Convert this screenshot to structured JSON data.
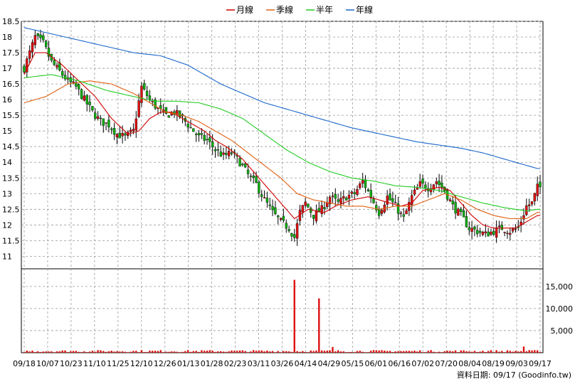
{
  "chart_data": {
    "type": "candlestick",
    "legend": [
      {
        "name": "月線",
        "color": "#d00000"
      },
      {
        "name": "季線",
        "color": "#e06010"
      },
      {
        "name": "半年",
        "color": "#22cc22"
      },
      {
        "name": "年線",
        "color": "#1a66cc"
      }
    ],
    "price_axis": {
      "min": 10.6,
      "max": 18.5,
      "ticks": [
        11,
        11.5,
        12,
        12.5,
        13,
        13.5,
        14,
        14.5,
        15,
        15.5,
        16,
        16.5,
        17,
        17.5,
        18,
        18.5
      ]
    },
    "volume_axis": {
      "min": 0,
      "max": 19000,
      "ticks": [
        5000,
        10000,
        15000
      ],
      "tick_labels": [
        "5,000",
        "10,000",
        "15,000"
      ]
    },
    "x_tick_labels": [
      "09/18",
      "10/07",
      "10/23",
      "11/10",
      "11/25",
      "12/10",
      "12/26",
      "01/13",
      "01/28",
      "02/23",
      "03/11",
      "03/26",
      "04/14",
      "04/29",
      "05/15",
      "06/01",
      "06/16",
      "07/02",
      "07/20",
      "08/04",
      "08/19",
      "09/03",
      "09/17"
    ],
    "close_path": [
      [
        0,
        17.0
      ],
      [
        4,
        18.0
      ],
      [
        7,
        17.8
      ],
      [
        10,
        17.2
      ],
      [
        13,
        16.9
      ],
      [
        16,
        16.6
      ],
      [
        19,
        16.4
      ],
      [
        22,
        16.0
      ],
      [
        25,
        15.6
      ],
      [
        28,
        15.3
      ],
      [
        31,
        15.2
      ],
      [
        34,
        14.9
      ],
      [
        37,
        14.8
      ],
      [
        40,
        15.0
      ],
      [
        43,
        16.4
      ],
      [
        46,
        16.0
      ],
      [
        49,
        15.7
      ],
      [
        52,
        15.5
      ],
      [
        55,
        15.6
      ],
      [
        58,
        15.4
      ],
      [
        61,
        15.1
      ],
      [
        64,
        14.8
      ],
      [
        67,
        14.7
      ],
      [
        70,
        14.4
      ],
      [
        73,
        14.2
      ],
      [
        76,
        14.3
      ],
      [
        79,
        14.0
      ],
      [
        82,
        13.6
      ],
      [
        85,
        13.3
      ],
      [
        88,
        12.8
      ],
      [
        91,
        12.4
      ],
      [
        94,
        12.1
      ],
      [
        97,
        11.9
      ],
      [
        99,
        11.6
      ],
      [
        101,
        12.4
      ],
      [
        103,
        12.7
      ],
      [
        106,
        12.3
      ],
      [
        109,
        12.5
      ],
      [
        112,
        12.9
      ],
      [
        115,
        12.7
      ],
      [
        118,
        12.9
      ],
      [
        121,
        13.0
      ],
      [
        124,
        13.4
      ],
      [
        127,
        12.9
      ],
      [
        130,
        12.4
      ],
      [
        133,
        12.9
      ],
      [
        136,
        12.6
      ],
      [
        139,
        12.2
      ],
      [
        142,
        12.9
      ],
      [
        145,
        13.3
      ],
      [
        148,
        13.2
      ],
      [
        151,
        13.4
      ],
      [
        154,
        13.1
      ],
      [
        157,
        12.6
      ],
      [
        160,
        12.3
      ],
      [
        163,
        11.9
      ],
      [
        166,
        11.8
      ],
      [
        169,
        11.7
      ],
      [
        172,
        11.8
      ],
      [
        175,
        11.9
      ],
      [
        178,
        11.8
      ],
      [
        181,
        11.9
      ],
      [
        184,
        12.6
      ],
      [
        186,
        12.7
      ],
      [
        188,
        13.2
      ]
    ],
    "moving_averages": {
      "月線": [
        [
          0,
          16.8
        ],
        [
          4,
          17.5
        ],
        [
          8,
          17.5
        ],
        [
          14,
          17.1
        ],
        [
          20,
          16.6
        ],
        [
          26,
          16.1
        ],
        [
          32,
          15.4
        ],
        [
          38,
          14.9
        ],
        [
          42,
          15.0
        ],
        [
          46,
          15.4
        ],
        [
          50,
          15.6
        ],
        [
          54,
          15.6
        ],
        [
          58,
          15.4
        ],
        [
          62,
          15.2
        ],
        [
          66,
          15.0
        ],
        [
          70,
          14.7
        ],
        [
          74,
          14.5
        ],
        [
          80,
          14.1
        ],
        [
          86,
          13.5
        ],
        [
          92,
          12.9
        ],
        [
          96,
          12.5
        ],
        [
          99,
          12.2
        ],
        [
          104,
          12.5
        ],
        [
          110,
          12.4
        ],
        [
          114,
          12.6
        ],
        [
          120,
          12.8
        ],
        [
          126,
          12.9
        ],
        [
          130,
          12.8
        ],
        [
          134,
          12.7
        ],
        [
          138,
          12.6
        ],
        [
          142,
          12.7
        ],
        [
          146,
          13.1
        ],
        [
          152,
          13.2
        ],
        [
          156,
          13.1
        ],
        [
          160,
          12.7
        ],
        [
          164,
          12.3
        ],
        [
          168,
          12.0
        ],
        [
          172,
          11.9
        ],
        [
          176,
          11.9
        ],
        [
          180,
          11.9
        ],
        [
          184,
          12.1
        ],
        [
          188,
          12.3
        ]
      ],
      "季線": [
        [
          0,
          15.9
        ],
        [
          8,
          16.1
        ],
        [
          16,
          16.5
        ],
        [
          24,
          16.6
        ],
        [
          32,
          16.5
        ],
        [
          40,
          16.2
        ],
        [
          46,
          15.9
        ],
        [
          52,
          15.6
        ],
        [
          58,
          15.5
        ],
        [
          64,
          15.3
        ],
        [
          70,
          15.0
        ],
        [
          76,
          14.7
        ],
        [
          82,
          14.3
        ],
        [
          88,
          13.9
        ],
        [
          94,
          13.5
        ],
        [
          100,
          13.0
        ],
        [
          106,
          12.8
        ],
        [
          112,
          12.7
        ],
        [
          118,
          12.6
        ],
        [
          124,
          12.6
        ],
        [
          130,
          12.5
        ],
        [
          136,
          12.6
        ],
        [
          142,
          12.6
        ],
        [
          148,
          12.8
        ],
        [
          154,
          13.0
        ],
        [
          160,
          12.8
        ],
        [
          166,
          12.5
        ],
        [
          172,
          12.3
        ],
        [
          178,
          12.2
        ],
        [
          184,
          12.2
        ],
        [
          188,
          12.4
        ]
      ],
      "半年": [
        [
          0,
          16.7
        ],
        [
          10,
          16.8
        ],
        [
          20,
          16.6
        ],
        [
          30,
          16.3
        ],
        [
          40,
          16.1
        ],
        [
          48,
          15.95
        ],
        [
          56,
          15.95
        ],
        [
          64,
          15.9
        ],
        [
          72,
          15.7
        ],
        [
          80,
          15.4
        ],
        [
          88,
          14.9
        ],
        [
          96,
          14.4
        ],
        [
          104,
          14.0
        ],
        [
          112,
          13.7
        ],
        [
          120,
          13.5
        ],
        [
          128,
          13.4
        ],
        [
          136,
          13.25
        ],
        [
          144,
          13.2
        ],
        [
          152,
          13.1
        ],
        [
          160,
          12.9
        ],
        [
          168,
          12.7
        ],
        [
          176,
          12.55
        ],
        [
          184,
          12.45
        ],
        [
          188,
          12.5
        ]
      ],
      "年線": [
        [
          0,
          18.3
        ],
        [
          10,
          18.1
        ],
        [
          20,
          17.9
        ],
        [
          30,
          17.7
        ],
        [
          40,
          17.5
        ],
        [
          50,
          17.4
        ],
        [
          60,
          17.1
        ],
        [
          66,
          16.8
        ],
        [
          72,
          16.5
        ],
        [
          80,
          16.2
        ],
        [
          88,
          15.9
        ],
        [
          96,
          15.7
        ],
        [
          104,
          15.5
        ],
        [
          112,
          15.3
        ],
        [
          120,
          15.1
        ],
        [
          128,
          14.95
        ],
        [
          136,
          14.8
        ],
        [
          144,
          14.65
        ],
        [
          152,
          14.55
        ],
        [
          160,
          14.45
        ],
        [
          168,
          14.3
        ],
        [
          176,
          14.1
        ],
        [
          184,
          13.9
        ],
        [
          188,
          13.8
        ]
      ]
    },
    "volume_spikes": [
      [
        99,
        16500
      ],
      [
        108,
        12300
      ],
      [
        113,
        1300
      ],
      [
        183,
        1400
      ]
    ],
    "volume_base": 400
  },
  "source_label": "資料日期: 09/17  (Goodinfo.tw)"
}
